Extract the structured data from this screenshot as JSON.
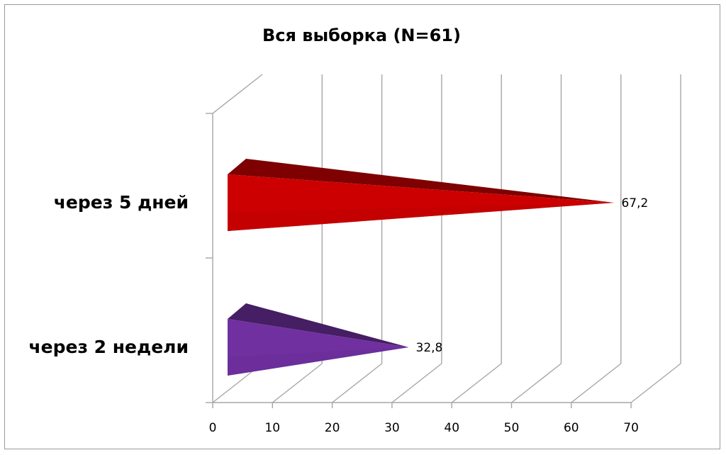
{
  "chart_data": {
    "type": "bar",
    "orientation": "horizontal",
    "style": "3d-cone",
    "title": "Вся выборка  (N=61)",
    "categories": [
      "через 5 дней",
      "через 2 недели"
    ],
    "values": [
      67.2,
      32.8
    ],
    "value_labels": [
      "67,2",
      "32,8"
    ],
    "colors": [
      "#cc0000",
      "#7030a0"
    ],
    "xlim": [
      0,
      70
    ],
    "xticks": [
      0,
      10,
      20,
      30,
      40,
      50,
      60,
      70
    ],
    "xtick_labels": [
      "0",
      "10",
      "20",
      "30",
      "40",
      "50",
      "60",
      "70"
    ],
    "grid": true,
    "legend": "none"
  }
}
